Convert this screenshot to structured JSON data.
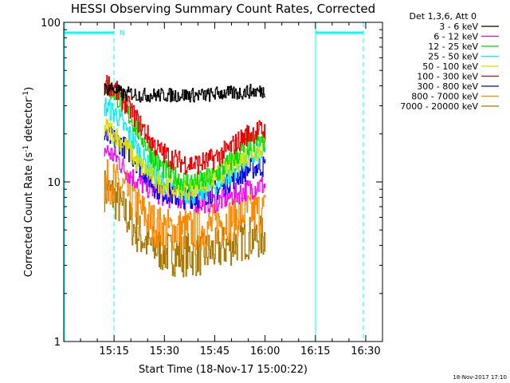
{
  "chart_data": {
    "type": "line",
    "title": "HESSI Observing Summary Count Rates, Corrected",
    "xlabel": "Start Time (18-Nov-17 15:00:22)",
    "ylabel_pre": "Corrected Count Rate (s",
    "ylabel_sup1": "-1",
    "ylabel_mid": " detector",
    "ylabel_sup2": "-1",
    "ylabel_post": ")",
    "ylabel": "Corrected Count Rate (s-1 detector-1)",
    "y_scale": "log",
    "ylim": [
      1,
      100
    ],
    "xlim_minutes": [
      0,
      95
    ],
    "x_ticks": [
      {
        "label": "15:15",
        "minute": 15
      },
      {
        "label": "15:30",
        "minute": 30
      },
      {
        "label": "15:45",
        "minute": 45
      },
      {
        "label": "16:00",
        "minute": 60
      },
      {
        "label": "16:15",
        "minute": 75
      },
      {
        "label": "16:30",
        "minute": 90
      }
    ],
    "y_ticks": [
      {
        "label": "1",
        "value": 1
      },
      {
        "label": "10",
        "value": 10
      },
      {
        "label": "100",
        "value": 100
      }
    ],
    "legend_header": "Det 1,3,6, Att 0",
    "legend_placement": "top-right outside",
    "footer_stamp": "18-Nov-2017 17:10",
    "night_marker": "N",
    "series": [
      {
        "name": "3 - 6 keV",
        "color": "#000000",
        "values": [
          [
            12,
            38
          ],
          [
            14,
            39
          ],
          [
            16,
            37
          ],
          [
            18,
            35
          ],
          [
            20,
            36
          ],
          [
            22,
            35
          ],
          [
            25,
            35
          ],
          [
            28,
            35
          ],
          [
            31,
            35
          ],
          [
            34,
            35
          ],
          [
            37,
            35
          ],
          [
            40,
            35
          ],
          [
            43,
            35
          ],
          [
            46,
            36
          ],
          [
            49,
            36
          ],
          [
            52,
            36
          ],
          [
            55,
            37
          ],
          [
            58,
            37
          ],
          [
            60,
            37
          ]
        ]
      },
      {
        "name": "6 - 12 keV",
        "color": "#ff00ff",
        "values": [
          [
            12,
            16
          ],
          [
            14,
            15
          ],
          [
            16,
            14
          ],
          [
            18,
            12
          ],
          [
            20,
            11
          ],
          [
            22,
            10
          ],
          [
            24,
            9.5
          ],
          [
            26,
            9
          ],
          [
            28,
            8.5
          ],
          [
            31,
            8
          ],
          [
            34,
            8
          ],
          [
            37,
            7.5
          ],
          [
            40,
            7.5
          ],
          [
            43,
            7.5
          ],
          [
            46,
            7.5
          ],
          [
            49,
            8
          ],
          [
            52,
            8.5
          ],
          [
            55,
            9
          ],
          [
            58,
            9.5
          ],
          [
            60,
            9.5
          ]
        ]
      },
      {
        "name": "12 - 25 keV",
        "color": "#00dd00",
        "values": [
          [
            12,
            40
          ],
          [
            14,
            38
          ],
          [
            16,
            34
          ],
          [
            18,
            29
          ],
          [
            20,
            25
          ],
          [
            22,
            21
          ],
          [
            24,
            18
          ],
          [
            26,
            15
          ],
          [
            28,
            13
          ],
          [
            31,
            11.5
          ],
          [
            34,
            10.5
          ],
          [
            37,
            10
          ],
          [
            40,
            10
          ],
          [
            43,
            10.5
          ],
          [
            46,
            11.5
          ],
          [
            49,
            13
          ],
          [
            52,
            15
          ],
          [
            55,
            17
          ],
          [
            58,
            18
          ],
          [
            60,
            18
          ]
        ]
      },
      {
        "name": "25 - 50 keV",
        "color": "#00eeee",
        "values": [
          [
            12,
            30
          ],
          [
            14,
            28
          ],
          [
            16,
            26
          ],
          [
            18,
            22
          ],
          [
            20,
            19
          ],
          [
            22,
            16
          ],
          [
            24,
            13.5
          ],
          [
            26,
            12
          ],
          [
            28,
            10.5
          ],
          [
            31,
            9.5
          ],
          [
            34,
            9
          ],
          [
            37,
            8.5
          ],
          [
            40,
            8.5
          ],
          [
            43,
            9
          ],
          [
            46,
            10
          ],
          [
            49,
            11
          ],
          [
            52,
            12.5
          ],
          [
            55,
            14
          ],
          [
            58,
            15
          ],
          [
            60,
            15
          ]
        ]
      },
      {
        "name": "50 - 100 keV",
        "color": "#dddd00",
        "values": [
          [
            12,
            22
          ],
          [
            14,
            21
          ],
          [
            16,
            19
          ],
          [
            18,
            17
          ],
          [
            20,
            15
          ],
          [
            22,
            13
          ],
          [
            24,
            12
          ],
          [
            26,
            11
          ],
          [
            28,
            10
          ],
          [
            31,
            9.5
          ],
          [
            34,
            9
          ],
          [
            37,
            9
          ],
          [
            40,
            9.5
          ],
          [
            43,
            10
          ],
          [
            46,
            11
          ],
          [
            49,
            12
          ],
          [
            52,
            13.5
          ],
          [
            55,
            15
          ],
          [
            58,
            16
          ],
          [
            60,
            17
          ]
        ]
      },
      {
        "name": "100 - 300 keV",
        "color": "#ee0000",
        "values": [
          [
            12,
            42
          ],
          [
            14,
            40
          ],
          [
            16,
            36
          ],
          [
            18,
            32
          ],
          [
            20,
            28
          ],
          [
            22,
            24
          ],
          [
            24,
            21
          ],
          [
            26,
            18
          ],
          [
            28,
            16
          ],
          [
            31,
            14.5
          ],
          [
            34,
            13.5
          ],
          [
            37,
            13
          ],
          [
            40,
            13
          ],
          [
            43,
            13.5
          ],
          [
            46,
            14.5
          ],
          [
            49,
            16
          ],
          [
            52,
            18
          ],
          [
            55,
            20
          ],
          [
            58,
            21
          ],
          [
            60,
            21
          ]
        ]
      },
      {
        "name": "300 - 800 keV",
        "color": "#0000ee",
        "values": [
          [
            12,
            19
          ],
          [
            14,
            19
          ],
          [
            16,
            18
          ],
          [
            18,
            16.5
          ],
          [
            20,
            15
          ],
          [
            22,
            13
          ],
          [
            24,
            11.5
          ],
          [
            26,
            10
          ],
          [
            28,
            9
          ],
          [
            31,
            8.5
          ],
          [
            34,
            8
          ],
          [
            37,
            8
          ],
          [
            40,
            8
          ],
          [
            43,
            8.5
          ],
          [
            46,
            9
          ],
          [
            49,
            10
          ],
          [
            52,
            11
          ],
          [
            55,
            12
          ],
          [
            58,
            12.5
          ],
          [
            60,
            12.5
          ]
        ]
      },
      {
        "name": "800 - 7000 keV",
        "color": "#ff8800",
        "values": [
          [
            12,
            10
          ],
          [
            14,
            10
          ],
          [
            16,
            9.5
          ],
          [
            18,
            9
          ],
          [
            20,
            8
          ],
          [
            22,
            7
          ],
          [
            24,
            6.2
          ],
          [
            26,
            5.6
          ],
          [
            28,
            5.2
          ],
          [
            31,
            5
          ],
          [
            34,
            5
          ],
          [
            37,
            5
          ],
          [
            40,
            5
          ],
          [
            43,
            5.2
          ],
          [
            46,
            5.5
          ],
          [
            49,
            5.8
          ],
          [
            52,
            6.2
          ],
          [
            55,
            6.5
          ],
          [
            58,
            6.5
          ],
          [
            60,
            6.5
          ]
        ]
      },
      {
        "name": "7000 - 20000 keV",
        "color": "#aa7700",
        "values": [
          [
            12,
            9
          ],
          [
            14,
            8.5
          ],
          [
            16,
            7.5
          ],
          [
            18,
            6.5
          ],
          [
            20,
            5.5
          ],
          [
            22,
            4.8
          ],
          [
            24,
            4.3
          ],
          [
            26,
            4
          ],
          [
            28,
            3.8
          ],
          [
            31,
            3.6
          ],
          [
            34,
            3.5
          ],
          [
            37,
            3.5
          ],
          [
            40,
            3.5
          ],
          [
            43,
            3.6
          ],
          [
            46,
            3.8
          ],
          [
            49,
            4
          ],
          [
            52,
            4.3
          ],
          [
            55,
            4.5
          ],
          [
            58,
            4.5
          ],
          [
            60,
            4.5
          ]
        ]
      }
    ]
  }
}
